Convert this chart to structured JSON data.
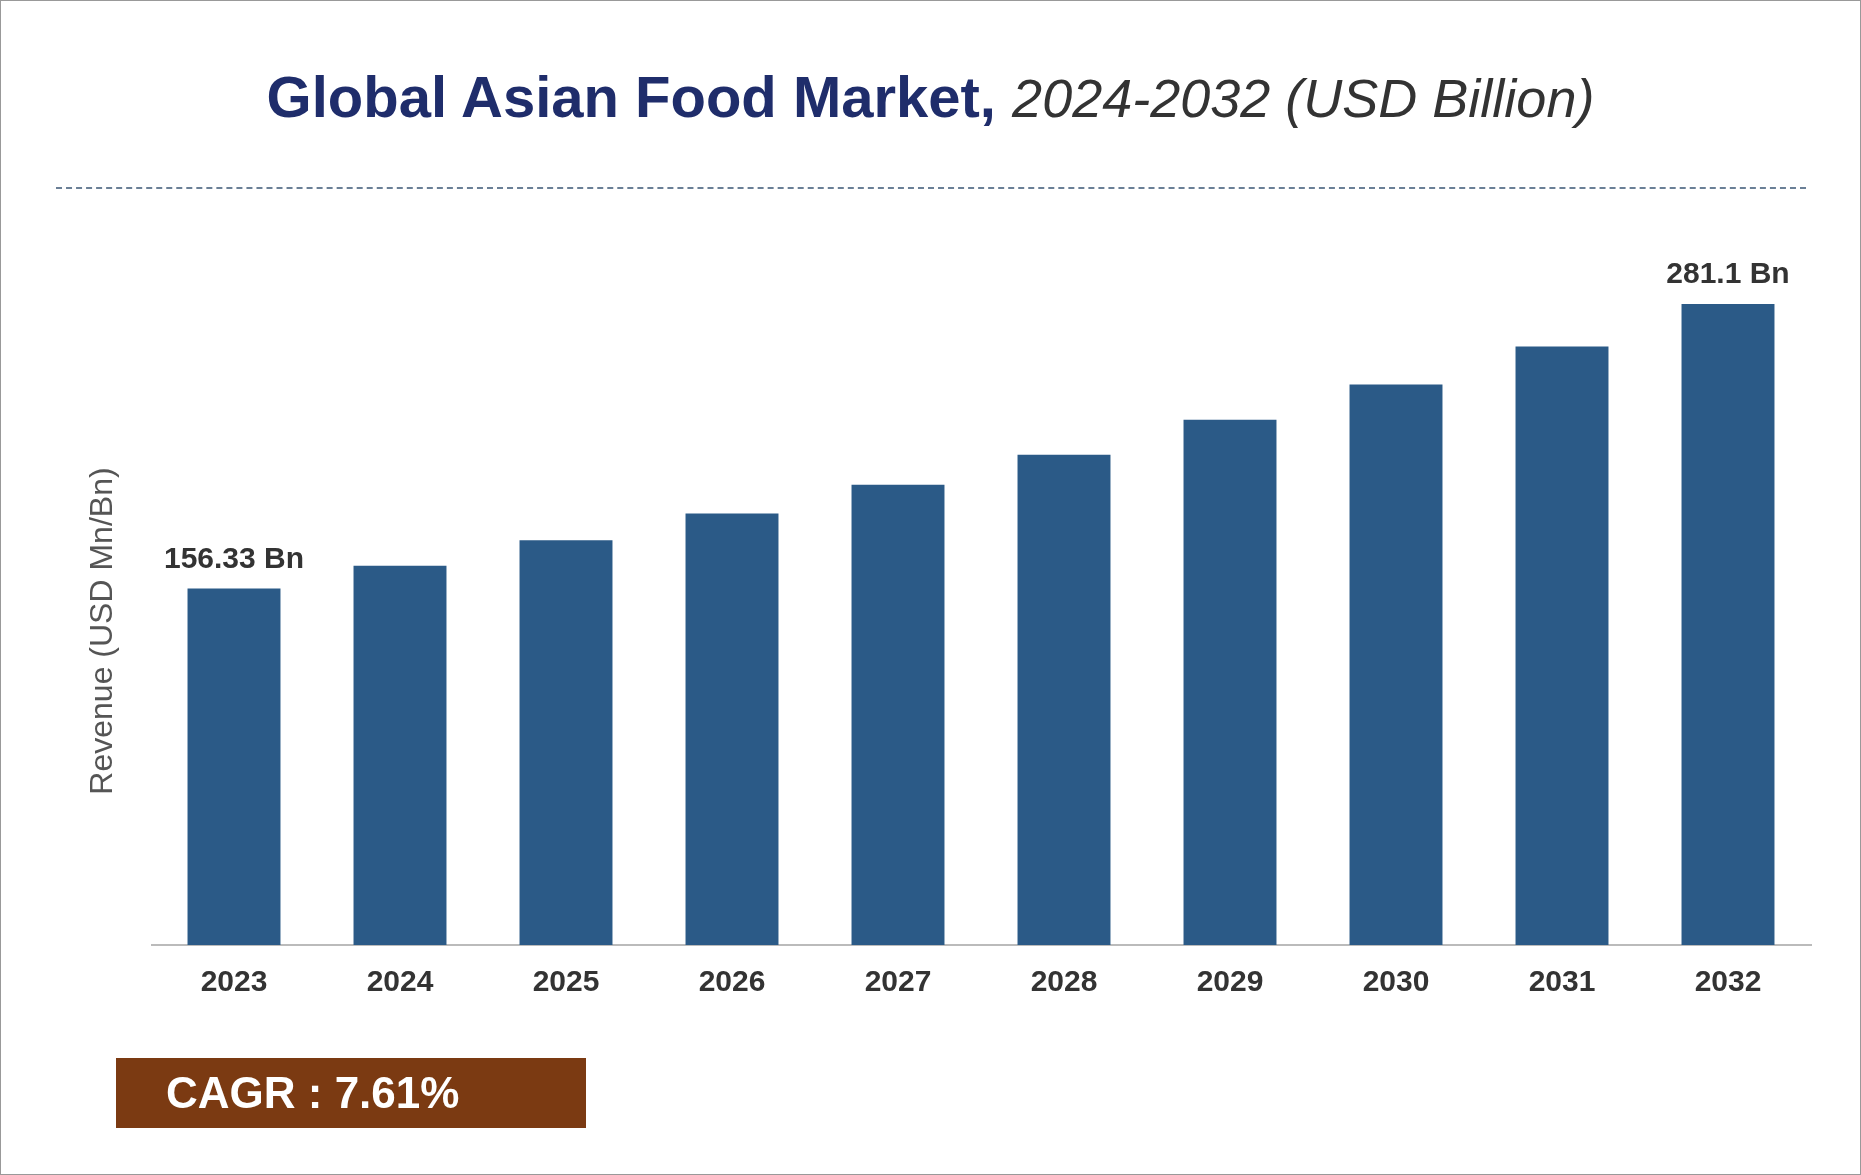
{
  "chart_data": {
    "type": "bar",
    "title": "Global Asian Food Market,",
    "subtitle": "2024-2032 (USD Billion)",
    "ylabel": "Revenue (USD Mn/Bn)",
    "categories": [
      "2023",
      "2024",
      "2025",
      "2026",
      "2027",
      "2028",
      "2029",
      "2030",
      "2031",
      "2032"
    ],
    "values": [
      156.33,
      166.3,
      177.5,
      189.3,
      201.9,
      215.0,
      230.4,
      245.8,
      262.5,
      281.1
    ],
    "value_labels": [
      "156.33 Bn",
      null,
      null,
      null,
      null,
      null,
      null,
      null,
      null,
      "281.1 Bn"
    ],
    "color": "#2b5a87",
    "grid": false,
    "legend": false,
    "annotations": [
      "CAGR : 7.61%"
    ]
  }
}
